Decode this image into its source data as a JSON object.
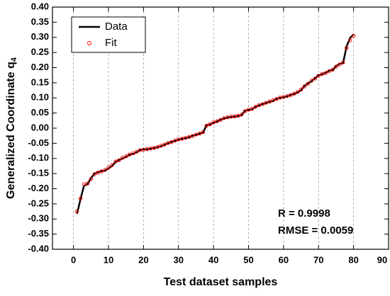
{
  "chart_data": {
    "type": "line",
    "x_label": "Test dataset samples",
    "y_label": "Generalized Coordinate q",
    "y_label_subscript": "4",
    "x": [
      1,
      2,
      3,
      4,
      5,
      6,
      7,
      8,
      9,
      10,
      11,
      12,
      13,
      14,
      15,
      16,
      17,
      18,
      19,
      20,
      21,
      22,
      23,
      24,
      25,
      26,
      27,
      28,
      29,
      30,
      31,
      32,
      33,
      34,
      35,
      36,
      37,
      38,
      39,
      40,
      41,
      42,
      43,
      44,
      45,
      46,
      47,
      48,
      49,
      50,
      51,
      52,
      53,
      54,
      55,
      56,
      57,
      58,
      59,
      60,
      61,
      62,
      63,
      64,
      65,
      66,
      67,
      68,
      69,
      70,
      71,
      72,
      73,
      74,
      75,
      76,
      77,
      78,
      79,
      80
    ],
    "series": [
      {
        "name": "Data",
        "style": "line",
        "color": "#000000",
        "values": [
          -0.283,
          -0.235,
          -0.19,
          -0.185,
          -0.165,
          -0.15,
          -0.145,
          -0.142,
          -0.14,
          -0.133,
          -0.125,
          -0.112,
          -0.105,
          -0.1,
          -0.095,
          -0.088,
          -0.085,
          -0.08,
          -0.072,
          -0.07,
          -0.07,
          -0.068,
          -0.066,
          -0.063,
          -0.06,
          -0.055,
          -0.05,
          -0.045,
          -0.042,
          -0.038,
          -0.035,
          -0.033,
          -0.03,
          -0.025,
          -0.022,
          -0.018,
          -0.015,
          0.01,
          0.012,
          0.018,
          0.022,
          0.028,
          0.032,
          0.035,
          0.037,
          0.038,
          0.04,
          0.043,
          0.058,
          0.06,
          0.062,
          0.07,
          0.075,
          0.08,
          0.083,
          0.087,
          0.09,
          0.097,
          0.1,
          0.102,
          0.105,
          0.11,
          0.113,
          0.118,
          0.125,
          0.14,
          0.148,
          0.155,
          0.165,
          0.175,
          0.178,
          0.183,
          0.19,
          0.192,
          0.205,
          0.213,
          0.215,
          0.27,
          0.298,
          0.31
        ]
      },
      {
        "name": "Fit",
        "style": "markers",
        "color": "#ff0000",
        "values": [
          -0.275,
          -0.232,
          -0.185,
          -0.183,
          -0.168,
          -0.152,
          -0.147,
          -0.143,
          -0.138,
          -0.13,
          -0.122,
          -0.11,
          -0.106,
          -0.098,
          -0.093,
          -0.087,
          -0.083,
          -0.078,
          -0.073,
          -0.071,
          -0.069,
          -0.067,
          -0.065,
          -0.062,
          -0.058,
          -0.054,
          -0.049,
          -0.046,
          -0.041,
          -0.037,
          -0.035,
          -0.032,
          -0.029,
          -0.026,
          -0.021,
          -0.018,
          -0.013,
          0.008,
          0.013,
          0.019,
          0.023,
          0.027,
          0.033,
          0.036,
          0.038,
          0.039,
          0.041,
          0.045,
          0.056,
          0.061,
          0.064,
          0.071,
          0.076,
          0.079,
          0.084,
          0.088,
          0.092,
          0.096,
          0.101,
          0.103,
          0.106,
          0.109,
          0.114,
          0.12,
          0.128,
          0.138,
          0.147,
          0.157,
          0.164,
          0.173,
          0.179,
          0.182,
          0.188,
          0.193,
          0.203,
          0.21,
          0.217,
          0.265,
          0.29,
          0.305
        ]
      }
    ],
    "xlim": [
      -6,
      90
    ],
    "ylim": [
      -0.4,
      0.4
    ],
    "xticks": [
      0,
      10,
      20,
      30,
      40,
      50,
      60,
      70,
      80,
      90
    ],
    "yticks": [
      {
        "value": -0.4,
        "label": "-0.40"
      },
      {
        "value": -0.35,
        "label": "-0.35"
      },
      {
        "value": -0.3,
        "label": "-0.30"
      },
      {
        "value": -0.25,
        "label": "-0.25"
      },
      {
        "value": -0.2,
        "label": "-0.20"
      },
      {
        "value": -0.15,
        "label": "-0.15"
      },
      {
        "value": -0.1,
        "label": "-0.10"
      },
      {
        "value": -0.05,
        "label": "-0.05"
      },
      {
        "value": 0,
        "label": "0.00"
      },
      {
        "value": 0.05,
        "label": "0.05"
      },
      {
        "value": 0.1,
        "label": "0.10"
      },
      {
        "value": 0.15,
        "label": "0.15"
      },
      {
        "value": 0.2,
        "label": "0.20"
      },
      {
        "value": 0.25,
        "label": "0.25"
      },
      {
        "value": 0.3,
        "label": "0.30"
      },
      {
        "value": 0.35,
        "label": "0.35"
      },
      {
        "value": 0.4,
        "label": "0.40"
      }
    ],
    "grid": "x-dashed",
    "legend": "upper left",
    "annotations": [
      "R = 0.9998",
      "RMSE = 0.0059"
    ]
  }
}
